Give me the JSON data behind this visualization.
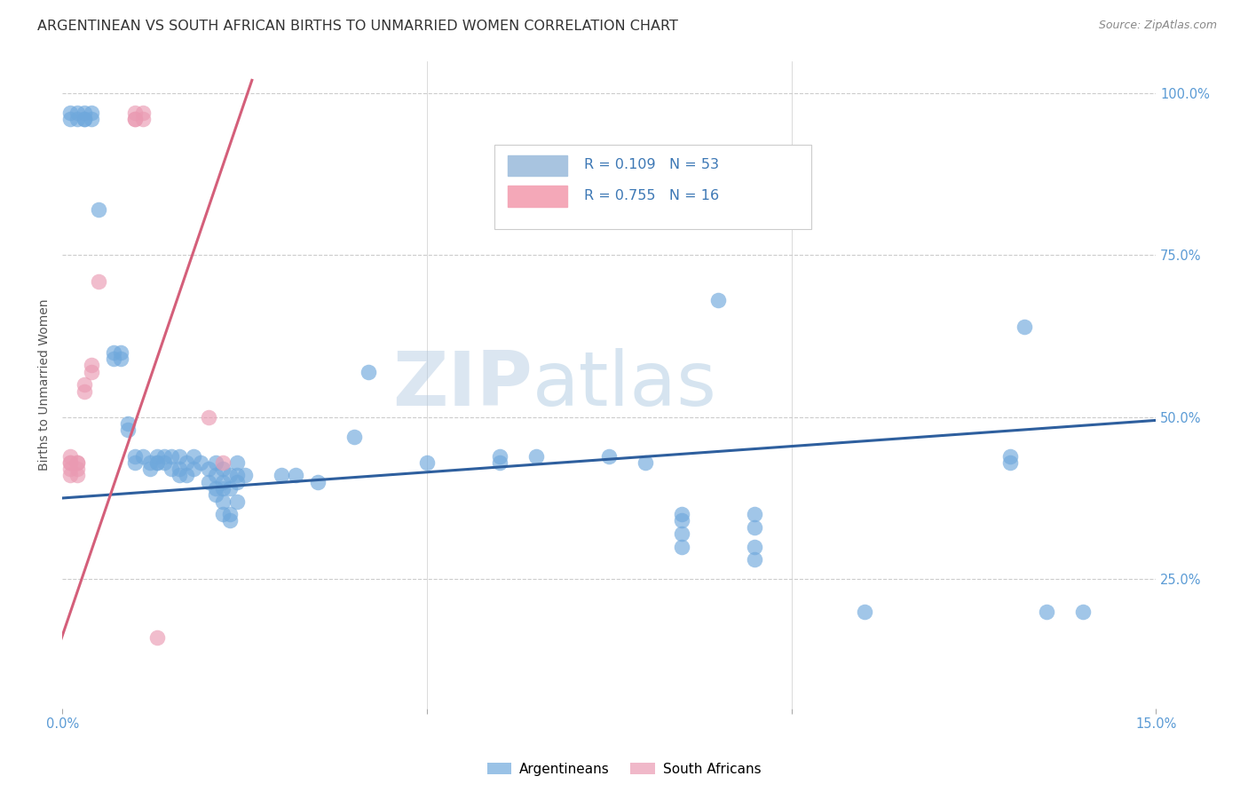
{
  "title": "ARGENTINEAN VS SOUTH AFRICAN BIRTHS TO UNMARRIED WOMEN CORRELATION CHART",
  "source": "Source: ZipAtlas.com",
  "ylabel": "Births to Unmarried Women",
  "yticks": [
    "100.0%",
    "75.0%",
    "50.0%",
    "25.0%"
  ],
  "ytick_vals": [
    1.0,
    0.75,
    0.5,
    0.25
  ],
  "xlim": [
    0.0,
    0.15
  ],
  "ylim": [
    0.05,
    1.05
  ],
  "watermark_zip": "ZIP",
  "watermark_atlas": "atlas",
  "legend_labels_bottom": [
    "Argentineans",
    "South Africans"
  ],
  "blue_scatter": [
    [
      0.001,
      0.97
    ],
    [
      0.001,
      0.96
    ],
    [
      0.002,
      0.97
    ],
    [
      0.002,
      0.96
    ],
    [
      0.003,
      0.97
    ],
    [
      0.003,
      0.96
    ],
    [
      0.003,
      0.96
    ],
    [
      0.004,
      0.97
    ],
    [
      0.004,
      0.96
    ],
    [
      0.005,
      0.82
    ],
    [
      0.007,
      0.6
    ],
    [
      0.007,
      0.59
    ],
    [
      0.008,
      0.6
    ],
    [
      0.008,
      0.59
    ],
    [
      0.009,
      0.49
    ],
    [
      0.009,
      0.48
    ],
    [
      0.01,
      0.44
    ],
    [
      0.01,
      0.43
    ],
    [
      0.011,
      0.44
    ],
    [
      0.012,
      0.43
    ],
    [
      0.012,
      0.42
    ],
    [
      0.013,
      0.44
    ],
    [
      0.013,
      0.43
    ],
    [
      0.013,
      0.43
    ],
    [
      0.014,
      0.44
    ],
    [
      0.014,
      0.43
    ],
    [
      0.015,
      0.44
    ],
    [
      0.015,
      0.42
    ],
    [
      0.016,
      0.44
    ],
    [
      0.016,
      0.42
    ],
    [
      0.016,
      0.41
    ],
    [
      0.017,
      0.43
    ],
    [
      0.017,
      0.41
    ],
    [
      0.018,
      0.44
    ],
    [
      0.018,
      0.42
    ],
    [
      0.019,
      0.43
    ],
    [
      0.02,
      0.42
    ],
    [
      0.02,
      0.4
    ],
    [
      0.021,
      0.43
    ],
    [
      0.021,
      0.41
    ],
    [
      0.021,
      0.39
    ],
    [
      0.021,
      0.38
    ],
    [
      0.022,
      0.42
    ],
    [
      0.022,
      0.4
    ],
    [
      0.022,
      0.39
    ],
    [
      0.022,
      0.37
    ],
    [
      0.022,
      0.35
    ],
    [
      0.023,
      0.41
    ],
    [
      0.023,
      0.39
    ],
    [
      0.023,
      0.35
    ],
    [
      0.023,
      0.34
    ],
    [
      0.024,
      0.43
    ],
    [
      0.024,
      0.41
    ],
    [
      0.024,
      0.4
    ],
    [
      0.024,
      0.37
    ],
    [
      0.025,
      0.41
    ],
    [
      0.03,
      0.41
    ],
    [
      0.032,
      0.41
    ],
    [
      0.035,
      0.4
    ],
    [
      0.04,
      0.47
    ],
    [
      0.042,
      0.57
    ],
    [
      0.05,
      0.43
    ],
    [
      0.06,
      0.44
    ],
    [
      0.06,
      0.43
    ],
    [
      0.065,
      0.44
    ],
    [
      0.075,
      0.44
    ],
    [
      0.08,
      0.43
    ],
    [
      0.085,
      0.35
    ],
    [
      0.085,
      0.34
    ],
    [
      0.085,
      0.32
    ],
    [
      0.085,
      0.3
    ],
    [
      0.09,
      0.68
    ],
    [
      0.095,
      0.35
    ],
    [
      0.095,
      0.33
    ],
    [
      0.095,
      0.3
    ],
    [
      0.095,
      0.28
    ],
    [
      0.11,
      0.2
    ],
    [
      0.13,
      0.44
    ],
    [
      0.13,
      0.43
    ],
    [
      0.14,
      0.2
    ],
    [
      0.132,
      0.64
    ],
    [
      0.135,
      0.2
    ]
  ],
  "pink_scatter": [
    [
      0.001,
      0.44
    ],
    [
      0.001,
      0.43
    ],
    [
      0.001,
      0.43
    ],
    [
      0.001,
      0.42
    ],
    [
      0.001,
      0.41
    ],
    [
      0.002,
      0.43
    ],
    [
      0.002,
      0.43
    ],
    [
      0.002,
      0.42
    ],
    [
      0.002,
      0.41
    ],
    [
      0.003,
      0.55
    ],
    [
      0.003,
      0.54
    ],
    [
      0.004,
      0.58
    ],
    [
      0.004,
      0.57
    ],
    [
      0.005,
      0.71
    ],
    [
      0.01,
      0.97
    ],
    [
      0.01,
      0.96
    ],
    [
      0.01,
      0.96
    ],
    [
      0.011,
      0.97
    ],
    [
      0.011,
      0.96
    ],
    [
      0.013,
      0.16
    ],
    [
      0.02,
      0.5
    ],
    [
      0.022,
      0.43
    ]
  ],
  "blue_line": {
    "x": [
      0.0,
      0.15
    ],
    "y": [
      0.375,
      0.495
    ]
  },
  "pink_line": {
    "x": [
      -0.001,
      0.026
    ],
    "y": [
      0.13,
      1.02
    ]
  },
  "scatter_color_blue": "#6fa8dc",
  "scatter_color_pink": "#ea9ab2",
  "line_color_blue": "#2e5f9e",
  "line_color_pink": "#d45f7a",
  "bg_color": "#ffffff",
  "grid_color": "#cccccc",
  "title_fontsize": 11.5,
  "axis_label_fontsize": 10,
  "tick_fontsize": 10.5
}
